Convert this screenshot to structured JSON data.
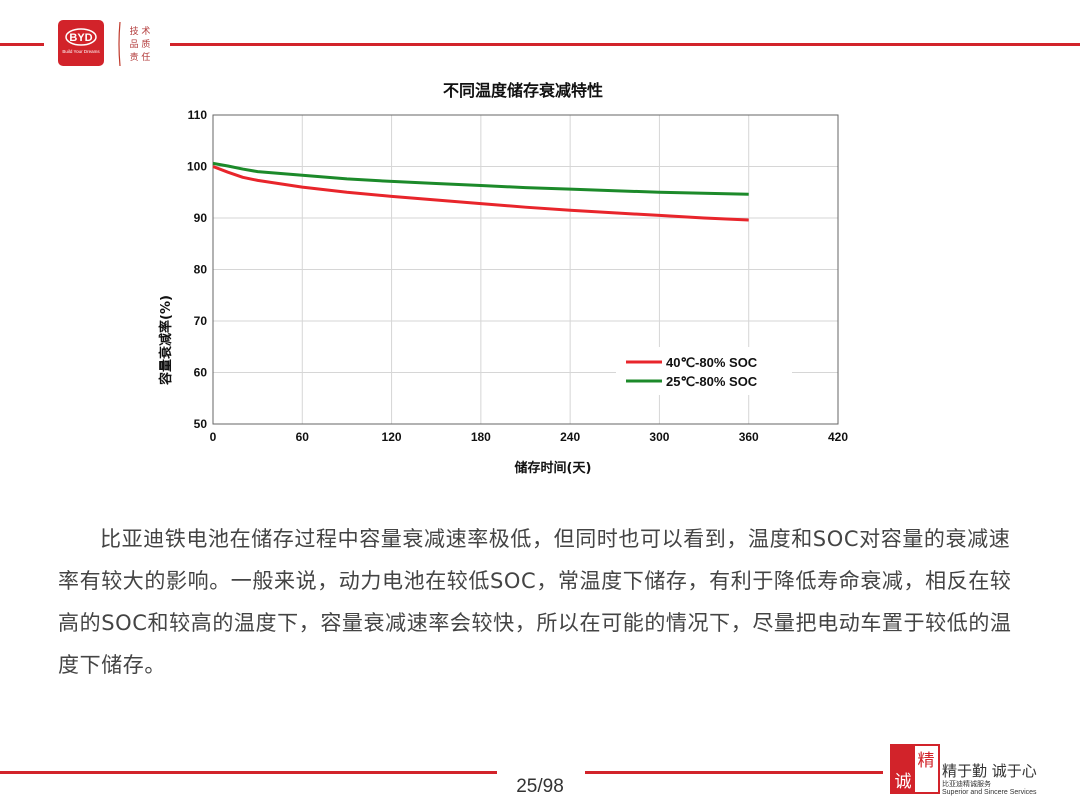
{
  "header": {
    "brand_logo_text": "BYD",
    "brand_logo_sub": "Build Your Dreams",
    "motto_seal_text": "技术 品质 责任"
  },
  "chart_data": {
    "type": "line",
    "title": "不同温度储存衰减特性",
    "xlabel": "储存时间(天)",
    "ylabel": "容量衰减率(%)",
    "xlim": [
      0,
      420
    ],
    "ylim": [
      50,
      110
    ],
    "xticks": [
      "0",
      "60",
      "120",
      "180",
      "240",
      "300",
      "360",
      "420"
    ],
    "yticks": [
      "110",
      "100",
      "90",
      "80",
      "70",
      "60",
      "50"
    ],
    "grid": true,
    "legend_position": "bottom-right",
    "series": [
      {
        "name": "40℃-80% SOC",
        "color": "#e8252b",
        "x": [
          0,
          10,
          20,
          30,
          60,
          90,
          120,
          150,
          180,
          210,
          240,
          270,
          300,
          330,
          360
        ],
        "y": [
          100.0,
          98.9,
          97.9,
          97.3,
          96.0,
          95.0,
          94.2,
          93.5,
          92.8,
          92.1,
          91.5,
          91.0,
          90.5,
          90.0,
          89.6
        ]
      },
      {
        "name": "25℃-80% SOC",
        "color": "#1c8a2a",
        "x": [
          0,
          10,
          20,
          30,
          60,
          90,
          120,
          150,
          180,
          210,
          240,
          270,
          300,
          330,
          360
        ],
        "y": [
          100.6,
          100.1,
          99.5,
          99.0,
          98.3,
          97.6,
          97.1,
          96.7,
          96.3,
          95.9,
          95.6,
          95.3,
          95.0,
          94.8,
          94.6
        ]
      }
    ]
  },
  "body": {
    "paragraph": "比亚迪铁电池在储存过程中容量衰减速率极低，但同时也可以看到，温度和SOC对容量的衰减速率有较大的影响。一般来说，动力电池在较低SOC，常温度下储存，有利于降低寿命衰减，相反在较高的SOC和较高的温度下，容量衰减速率会较快，所以在可能的情况下，尽量把电动车置于较低的温度下储存。"
  },
  "footer": {
    "page_number": "25/98",
    "logo_chars": "精诚",
    "slogan": "精于勤 诚于心",
    "subtitle_cn": "比亚迪精诚服务",
    "subtitle_en": "Superior and Sincere Services",
    "accent_color": "#d2232a"
  }
}
